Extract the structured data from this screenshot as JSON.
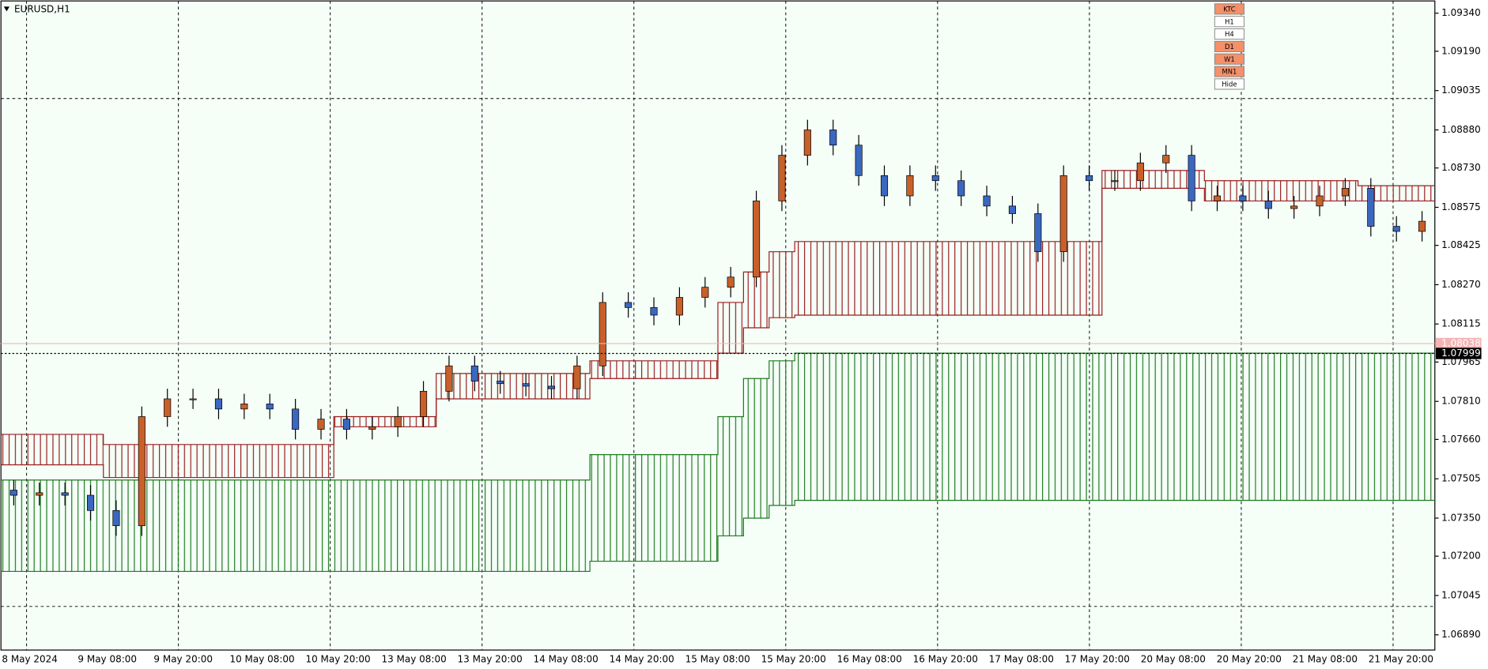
{
  "chart_data": {
    "type": "candlestick",
    "title": "EURUSD,H1",
    "x_labels": [
      "8 May 2024",
      "9 May 08:00",
      "9 May 20:00",
      "10 May 08:00",
      "10 May 20:00",
      "13 May 08:00",
      "13 May 20:00",
      "14 May 08:00",
      "14 May 20:00",
      "15 May 08:00",
      "15 May 20:00",
      "16 May 08:00",
      "16 May 20:00",
      "17 May 08:00",
      "17 May 20:00",
      "20 May 08:00",
      "20 May 20:00",
      "21 May 08:00",
      "21 May 20:00"
    ],
    "open": [
      1.0746,
      1.0744,
      1.0745,
      1.0744,
      1.0738,
      1.0732,
      1.0775,
      1.0782,
      1.0782,
      1.0778,
      1.078,
      1.0778,
      1.077,
      1.0774,
      1.077,
      1.0771,
      1.0775,
      1.0785,
      1.0795,
      1.0789,
      1.0788,
      1.0787,
      1.0786,
      1.0795,
      1.082,
      1.0818,
      1.0815,
      1.0822,
      1.0826,
      1.083,
      1.086,
      1.0878,
      1.0888,
      1.0882,
      1.087,
      1.0862,
      1.087,
      1.0868,
      1.0862,
      1.0858,
      1.0855,
      1.084,
      1.087,
      1.0868,
      1.0868,
      1.0875,
      1.0878,
      1.086,
      1.0862,
      1.086,
      1.0857,
      1.0858,
      1.0862,
      1.0865,
      1.085,
      1.0848
    ],
    "high": [
      1.075,
      1.0749,
      1.0749,
      1.0748,
      1.0742,
      1.0779,
      1.0786,
      1.0786,
      1.0786,
      1.0784,
      1.0784,
      1.0782,
      1.0778,
      1.0778,
      1.0775,
      1.0779,
      1.0789,
      1.0799,
      1.0799,
      1.0793,
      1.0792,
      1.0791,
      1.0799,
      1.0824,
      1.0824,
      1.0822,
      1.0826,
      1.083,
      1.0834,
      1.0864,
      1.0882,
      1.0892,
      1.0892,
      1.0886,
      1.0874,
      1.0874,
      1.0874,
      1.0872,
      1.0866,
      1.0862,
      1.0859,
      1.0874,
      1.0874,
      1.0872,
      1.0879,
      1.0882,
      1.0882,
      1.0866,
      1.0866,
      1.0864,
      1.0862,
      1.0866,
      1.0869,
      1.0869,
      1.0854,
      1.0856
    ],
    "low": [
      1.074,
      1.074,
      1.074,
      1.0734,
      1.0728,
      1.0728,
      1.0771,
      1.0778,
      1.0774,
      1.0774,
      1.0774,
      1.0766,
      1.0766,
      1.0766,
      1.0766,
      1.0767,
      1.0771,
      1.0781,
      1.0785,
      1.0784,
      1.0783,
      1.0782,
      1.0782,
      1.0791,
      1.0814,
      1.0811,
      1.0811,
      1.0818,
      1.0822,
      1.0826,
      1.0856,
      1.0874,
      1.0878,
      1.0866,
      1.0858,
      1.0858,
      1.0864,
      1.0858,
      1.0854,
      1.0851,
      1.0836,
      1.0836,
      1.0864,
      1.0864,
      1.0864,
      1.0871,
      1.0856,
      1.0856,
      1.0856,
      1.0853,
      1.0853,
      1.0854,
      1.0858,
      1.0846,
      1.0844,
      1.0844
    ],
    "close": [
      1.0744,
      1.0745,
      1.0744,
      1.0738,
      1.0732,
      1.0775,
      1.0782,
      1.0782,
      1.0778,
      1.078,
      1.0778,
      1.077,
      1.0774,
      1.077,
      1.0771,
      1.0775,
      1.0785,
      1.0795,
      1.0789,
      1.0788,
      1.0787,
      1.0786,
      1.0795,
      1.082,
      1.0818,
      1.0815,
      1.0822,
      1.0826,
      1.083,
      1.086,
      1.0878,
      1.0888,
      1.0882,
      1.087,
      1.0862,
      1.087,
      1.0868,
      1.0862,
      1.0858,
      1.0855,
      1.084,
      1.087,
      1.0868,
      1.0868,
      1.0875,
      1.0878,
      1.086,
      1.0862,
      1.086,
      1.0857,
      1.0858,
      1.0862,
      1.0865,
      1.085,
      1.0848,
      1.0852
    ],
    "up_color": "#c8602a",
    "down_color": "#3a68c0",
    "bands": [
      {
        "color": "#1f7a1f",
        "upper": [
          1.075,
          1.075,
          1.075,
          1.075,
          1.075,
          1.075,
          1.075,
          1.075,
          1.075,
          1.075,
          1.075,
          1.075,
          1.075,
          1.075,
          1.075,
          1.075,
          1.075,
          1.075,
          1.075,
          1.075,
          1.075,
          1.075,
          1.075,
          1.076,
          1.076,
          1.076,
          1.076,
          1.076,
          1.0775,
          1.079,
          1.0797,
          1.08,
          1.08,
          1.08,
          1.08,
          1.08,
          1.08,
          1.08,
          1.08,
          1.08,
          1.08,
          1.08,
          1.08,
          1.08,
          1.08,
          1.08,
          1.08,
          1.08,
          1.08,
          1.08,
          1.08,
          1.08,
          1.08,
          1.08,
          1.08,
          1.08
        ],
        "lower": [
          1.0714,
          1.0714,
          1.0714,
          1.0714,
          1.0714,
          1.0714,
          1.0714,
          1.0714,
          1.0714,
          1.0714,
          1.0714,
          1.0714,
          1.0714,
          1.0714,
          1.0714,
          1.0714,
          1.0714,
          1.0714,
          1.0714,
          1.0714,
          1.0714,
          1.0714,
          1.0714,
          1.0718,
          1.0718,
          1.0718,
          1.0718,
          1.0718,
          1.0728,
          1.0735,
          1.074,
          1.0742,
          1.0742,
          1.0742,
          1.0742,
          1.0742,
          1.0742,
          1.0742,
          1.0742,
          1.0742,
          1.0742,
          1.0742,
          1.0742,
          1.0742,
          1.0742,
          1.0742,
          1.0742,
          1.0742,
          1.0742,
          1.0742,
          1.0742,
          1.0742,
          1.0742,
          1.0742,
          1.0742,
          1.0742
        ]
      },
      {
        "color": "#9b1c1c",
        "upper": [
          1.0768,
          1.0768,
          1.0768,
          1.0768,
          1.0764,
          1.0764,
          1.0764,
          1.0764,
          1.0764,
          1.0764,
          1.0764,
          1.0764,
          1.0764,
          1.0775,
          1.0775,
          1.0775,
          1.0775,
          1.0792,
          1.0792,
          1.0792,
          1.0792,
          1.0792,
          1.0792,
          1.0797,
          1.0797,
          1.0797,
          1.0797,
          1.0797,
          1.082,
          1.0832,
          1.084,
          1.0844,
          1.0844,
          1.0844,
          1.0844,
          1.0844,
          1.0844,
          1.0844,
          1.0844,
          1.0844,
          1.0844,
          1.0844,
          1.0844,
          1.0872,
          1.0872,
          1.0872,
          1.0872,
          1.0868,
          1.0868,
          1.0868,
          1.0868,
          1.0868,
          1.0868,
          1.0866,
          1.0866,
          1.0866
        ],
        "lower": [
          1.0756,
          1.0756,
          1.0756,
          1.0756,
          1.0751,
          1.0751,
          1.0751,
          1.0751,
          1.0751,
          1.0751,
          1.0751,
          1.0751,
          1.0751,
          1.0771,
          1.0771,
          1.0771,
          1.0771,
          1.0782,
          1.0782,
          1.0782,
          1.0782,
          1.0782,
          1.0782,
          1.079,
          1.079,
          1.079,
          1.079,
          1.079,
          1.08,
          1.081,
          1.0814,
          1.0815,
          1.0815,
          1.0815,
          1.0815,
          1.0815,
          1.0815,
          1.0815,
          1.0815,
          1.0815,
          1.0815,
          1.0815,
          1.0815,
          1.0865,
          1.0865,
          1.0865,
          1.0865,
          1.086,
          1.086,
          1.086,
          1.086,
          1.086,
          1.086,
          1.086,
          1.086,
          1.086
        ]
      }
    ],
    "ylim": [
      1.0683,
      1.09392
    ],
    "yticks": [
      {
        "value": 1.0934,
        "label": "1.09340"
      },
      {
        "value": 1.0919,
        "label": "1.09190"
      },
      {
        "value": 1.09035,
        "label": "1.09035"
      },
      {
        "value": 1.0888,
        "label": "1.08880"
      },
      {
        "value": 1.0873,
        "label": "1.08730"
      },
      1.08575,
      1.08425,
      {
        "value": 1.0827,
        "label": "1.08270"
      },
      1.08115,
      1.07965,
      {
        "value": 1.0781,
        "label": "1.07810"
      },
      {
        "value": 1.0766,
        "label": "1.07660"
      },
      1.07505,
      {
        "value": 1.0735,
        "label": "1.07350"
      },
      {
        "value": 1.072,
        "label": "1.07200"
      },
      1.07045,
      {
        "value": 1.0689,
        "label": "1.06890"
      }
    ],
    "ask": 1.08038,
    "ask_color": "#f4b4b4",
    "bid": 1.07999,
    "bid_color": "#000000",
    "buttons": [
      {
        "label": "KTC",
        "color": "#f4906a"
      },
      {
        "label": "H1",
        "color": "#ffffff"
      },
      {
        "label": "H4",
        "color": "#ffffff"
      },
      {
        "label": "D1",
        "color": "#f4906a"
      },
      {
        "label": "W1",
        "color": "#f4906a"
      },
      {
        "label": "MN1",
        "color": "#f4906a"
      },
      {
        "label": "Hide",
        "color": "#ffffff"
      }
    ]
  }
}
